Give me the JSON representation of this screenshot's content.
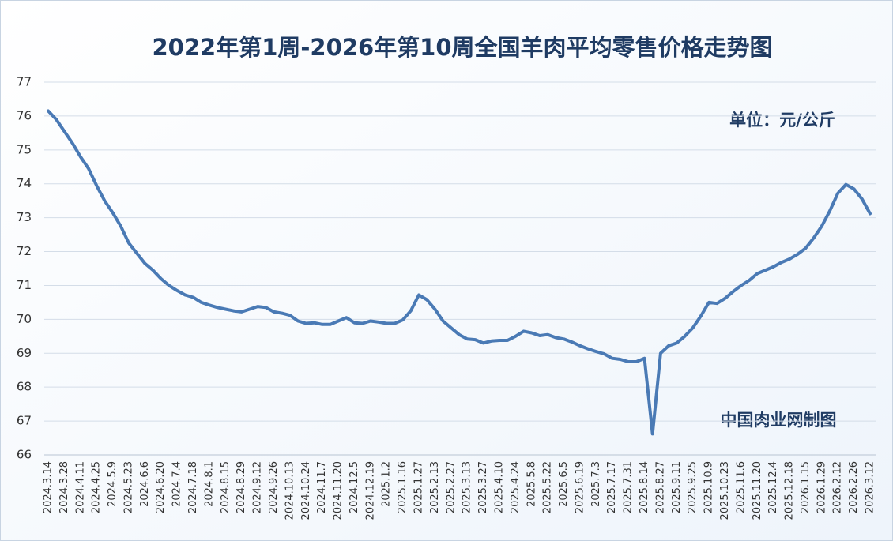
{
  "chart_data": {
    "type": "line",
    "title": "2022年第1周-2026年第10周全国羊肉平均零售价格走势图",
    "unit_note": "单位：元/公斤",
    "source_note": "中国肉业网制图",
    "categories": [
      "2024.3.14",
      null,
      "2024.3.28",
      null,
      "2024.4.11",
      null,
      "2024.4.25",
      null,
      "2024.5.9",
      null,
      "2024.5.23",
      null,
      "2024.6.6",
      null,
      "2024.6.20",
      null,
      "2024.7.4",
      null,
      "2024.7.18",
      null,
      "2024.8.1",
      null,
      "2024.8.15",
      null,
      "2024.8.29",
      null,
      "2024.9.12",
      null,
      "2024.9.26",
      null,
      "2024.10.13",
      null,
      "2024.10.24",
      null,
      "2024.11.7",
      null,
      "2024.11.20",
      null,
      "2024.12.5",
      null,
      "2024.12.19",
      null,
      "2025.1.2",
      null,
      "2025.1.16",
      null,
      "2025.1.27",
      null,
      "2025.2.13",
      null,
      "2025.2.27",
      null,
      "2025.3.13",
      null,
      "2025.3.27",
      null,
      "2025.4.10",
      null,
      "2025.4.24",
      null,
      "2025.5.8",
      null,
      "2025.5.22",
      null,
      "2025.6.5",
      null,
      "2025.6.19",
      null,
      "2025.7.3",
      null,
      "2025.7.17",
      null,
      "2025.7.31",
      null,
      "2025.8.14",
      null,
      "2025.8.27",
      null,
      "2025.9.11",
      null,
      "2025.9.25",
      null,
      "2025.10.9",
      null,
      "2025.10.23",
      null,
      "2025.11.6",
      null,
      "2025.11.20",
      null,
      "2025.12.4",
      null,
      "2025.12.18",
      null,
      "2026.1.15",
      null,
      "2026.1.29",
      null,
      "2026.2.12",
      null,
      "2026.2.26",
      null,
      "2026.3.12"
    ],
    "series": [
      {
        "name": "全国羊肉平均零售价格",
        "color": "#4a7ab5",
        "values": [
          76.15,
          75.9,
          75.55,
          75.2,
          74.8,
          74.45,
          73.95,
          73.5,
          73.15,
          72.75,
          72.25,
          71.95,
          71.65,
          71.45,
          71.2,
          71.0,
          70.85,
          70.72,
          70.65,
          70.5,
          70.42,
          70.35,
          70.3,
          70.25,
          70.22,
          70.3,
          70.38,
          70.35,
          70.22,
          70.18,
          70.12,
          69.95,
          69.88,
          69.9,
          69.85,
          69.85,
          69.95,
          70.05,
          69.9,
          69.88,
          69.95,
          69.92,
          69.88,
          69.88,
          69.98,
          70.25,
          70.72,
          70.58,
          70.3,
          69.95,
          69.75,
          69.55,
          69.42,
          69.4,
          69.3,
          69.36,
          69.38,
          69.38,
          69.5,
          69.65,
          69.6,
          69.52,
          69.55,
          69.46,
          69.42,
          69.33,
          69.22,
          69.13,
          69.05,
          68.98,
          68.85,
          68.82,
          68.75,
          68.75,
          68.85,
          66.62,
          69.0,
          69.22,
          69.3,
          69.5,
          69.75,
          70.1,
          70.5,
          70.47,
          70.62,
          70.82,
          71.0,
          71.15,
          71.35,
          71.45,
          71.55,
          71.68,
          71.78,
          71.92,
          72.1,
          72.4,
          72.75,
          73.2,
          73.72,
          73.98,
          73.85,
          73.55,
          73.12
        ]
      }
    ],
    "ylim": [
      66,
      77
    ],
    "yticks": [
      66,
      67,
      68,
      69,
      70,
      71,
      72,
      73,
      74,
      75,
      76,
      77
    ],
    "grid": true
  }
}
